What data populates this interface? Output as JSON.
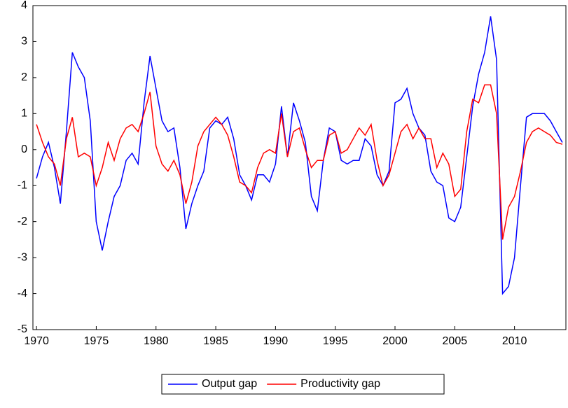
{
  "chart_data": {
    "type": "line",
    "x": [
      1970,
      1970.5,
      1971,
      1971.5,
      1972,
      1972.5,
      1973,
      1973.5,
      1974,
      1974.5,
      1975,
      1975.5,
      1976,
      1976.5,
      1977,
      1977.5,
      1978,
      1978.5,
      1979,
      1979.5,
      1980,
      1980.5,
      1981,
      1981.5,
      1982,
      1982.5,
      1983,
      1983.5,
      1984,
      1984.5,
      1985,
      1985.5,
      1986,
      1986.5,
      1987,
      1987.5,
      1988,
      1988.5,
      1989,
      1989.5,
      1990,
      1990.5,
      1991,
      1991.5,
      1992,
      1992.5,
      1993,
      1993.5,
      1994,
      1994.5,
      1995,
      1995.5,
      1996,
      1996.5,
      1997,
      1997.5,
      1998,
      1998.5,
      1999,
      1999.5,
      2000,
      2000.5,
      2001,
      2001.5,
      2002,
      2002.5,
      2003,
      2003.5,
      2004,
      2004.5,
      2005,
      2005.5,
      2006,
      2006.5,
      2007,
      2007.5,
      2008,
      2008.5,
      2009,
      2009.5,
      2010,
      2010.5,
      2011,
      2011.5,
      2012,
      2012.5,
      2013,
      2013.5,
      2014
    ],
    "series": [
      {
        "name": "Output gap",
        "color": "#0000ff",
        "values": [
          -0.8,
          -0.2,
          0.2,
          -0.5,
          -1.5,
          0.5,
          2.7,
          2.3,
          2.0,
          0.8,
          -2.0,
          -2.8,
          -2.0,
          -1.3,
          -1.0,
          -0.3,
          -0.1,
          -0.4,
          1.3,
          2.6,
          1.7,
          0.8,
          0.5,
          0.6,
          -0.5,
          -2.2,
          -1.5,
          -1.0,
          -0.6,
          0.6,
          0.8,
          0.7,
          0.9,
          0.3,
          -0.7,
          -1.0,
          -1.4,
          -0.7,
          -0.7,
          -0.9,
          -0.4,
          1.2,
          -0.2,
          1.3,
          0.8,
          0.2,
          -1.3,
          -1.7,
          -0.3,
          0.6,
          0.5,
          -0.3,
          -0.4,
          -0.3,
          -0.3,
          0.3,
          0.1,
          -0.7,
          -1.0,
          -0.6,
          1.3,
          1.4,
          1.7,
          1.0,
          0.6,
          0.4,
          -0.6,
          -0.9,
          -1.0,
          -1.9,
          -2.0,
          -1.6,
          -0.2,
          1.2,
          2.1,
          2.7,
          3.7,
          2.5,
          -4.0,
          -3.8,
          -3.0,
          -1.0,
          0.9,
          1.0,
          1.0,
          1.0,
          0.8,
          0.5,
          0.2
        ]
      },
      {
        "name": "Productivity gap",
        "color": "#ff0000",
        "values": [
          0.7,
          0.2,
          -0.2,
          -0.4,
          -1.0,
          0.3,
          0.9,
          -0.2,
          -0.1,
          -0.2,
          -1.0,
          -0.5,
          0.2,
          -0.3,
          0.3,
          0.6,
          0.7,
          0.5,
          1.0,
          1.6,
          0.1,
          -0.4,
          -0.6,
          -0.3,
          -0.7,
          -1.5,
          -0.9,
          0.1,
          0.5,
          0.7,
          0.9,
          0.7,
          0.4,
          -0.2,
          -0.9,
          -1.0,
          -1.2,
          -0.5,
          -0.1,
          0.0,
          -0.1,
          1.0,
          -0.2,
          0.5,
          0.6,
          0.0,
          -0.5,
          -0.3,
          -0.3,
          0.4,
          0.5,
          -0.1,
          0.0,
          0.3,
          0.6,
          0.4,
          0.7,
          -0.3,
          -1.0,
          -0.7,
          -0.1,
          0.5,
          0.7,
          0.3,
          0.6,
          0.3,
          0.3,
          -0.5,
          -0.1,
          -0.4,
          -1.3,
          -1.1,
          0.5,
          1.4,
          1.3,
          1.8,
          1.8,
          1.0,
          -2.5,
          -1.6,
          -1.3,
          -0.6,
          0.2,
          0.5,
          0.6,
          0.5,
          0.4,
          0.2,
          0.15
        ]
      }
    ],
    "xlim": [
      1969.7,
      2014.3
    ],
    "xticks": [
      1970,
      1975,
      1980,
      1985,
      1990,
      1995,
      2000,
      2005,
      2010
    ],
    "ylim": [
      -5,
      4
    ],
    "yticks": [
      -5,
      -4,
      -3,
      -2,
      -1,
      0,
      1,
      2,
      3,
      4
    ]
  }
}
